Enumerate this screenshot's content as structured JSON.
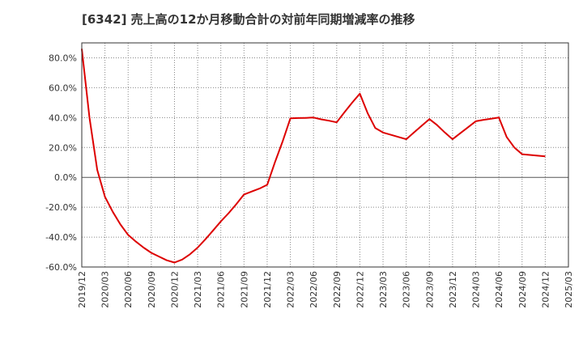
{
  "chart_data": {
    "type": "line",
    "title": "[6342]  売上高の12か月移動合計の対前年同期増減率の推移",
    "xlabel": "",
    "ylabel": "",
    "ylim": [
      -60,
      90
    ],
    "yticks": [
      -60,
      -40,
      -20,
      0,
      20,
      40,
      60,
      80
    ],
    "ytick_labels": [
      "-60.0%",
      "-40.0%",
      "-20.0%",
      "0.0%",
      "20.0%",
      "40.0%",
      "60.0%",
      "80.0%"
    ],
    "xticks": [
      "2019/12",
      "2020/03",
      "2020/06",
      "2020/09",
      "2020/12",
      "2021/03",
      "2021/06",
      "2021/09",
      "2021/12",
      "2022/03",
      "2022/06",
      "2022/09",
      "2022/12",
      "2023/03",
      "2023/06",
      "2023/09",
      "2023/12",
      "2024/03",
      "2024/06",
      "2024/09",
      "2024/12",
      "2025/03"
    ],
    "grid": true,
    "series": [
      {
        "name": "増減率",
        "color": "#dd0000",
        "x": [
          0,
          1,
          2,
          3,
          4,
          5,
          6,
          7,
          8,
          9,
          10,
          11,
          12,
          13,
          14,
          15,
          16,
          17,
          18,
          19,
          20,
          21,
          22,
          23,
          24,
          25,
          26,
          27,
          28,
          29,
          30,
          31,
          32,
          33,
          34,
          35,
          36,
          37,
          38,
          39,
          40,
          41,
          42,
          43,
          44,
          45,
          46,
          47,
          48,
          49,
          50,
          51,
          52,
          53,
          54,
          55,
          56,
          57,
          58,
          59,
          60
        ],
        "values": [
          86.0,
          40.0,
          5.0,
          -13.0,
          -23.0,
          -31.5,
          -38.5,
          -43.0,
          -47.0,
          -50.5,
          -53.0,
          -55.5,
          -57.0,
          -55.0,
          -51.5,
          -47.0,
          -41.5,
          -35.5,
          -29.5,
          -24.0,
          -18.0,
          -11.5,
          -9.5,
          -7.5,
          -5.0,
          10.0,
          24.0,
          39.5,
          39.7,
          39.8,
          40.0,
          38.8,
          37.9,
          36.8,
          43.5,
          50.0,
          56.0,
          43.0,
          33.0,
          30.0,
          28.5,
          27.0,
          25.5,
          30.0,
          34.5,
          39.0,
          35.0,
          30.0,
          25.5,
          29.5,
          33.5,
          37.5,
          38.5,
          39.2,
          40.0,
          27.0,
          20.0,
          15.5,
          15.0,
          14.5,
          14.0
        ]
      }
    ]
  }
}
